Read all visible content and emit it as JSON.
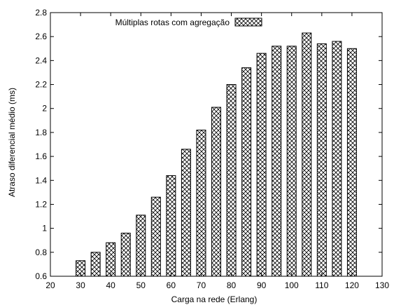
{
  "chart_data": {
    "type": "bar",
    "title": "",
    "xlabel": "Carga na rede (Erlang)",
    "ylabel": "Atraso diferencial médio (ms)",
    "xlim": [
      20,
      130
    ],
    "ylim": [
      0.6,
      2.8
    ],
    "xticks": [
      "20",
      "30",
      "40",
      "50",
      "60",
      "70",
      "80",
      "90",
      "100",
      "110",
      "120",
      "130"
    ],
    "yticks": [
      "0.6",
      "0.8",
      "1",
      "1.2",
      "1.4",
      "1.6",
      "1.8",
      "2",
      "2.2",
      "2.4",
      "2.6",
      "2.8"
    ],
    "legend_position": "top",
    "grid": false,
    "bar_pattern": "crosshatch",
    "series": [
      {
        "name": "Múltiplas rotas com agregação",
        "x": [
          30,
          35,
          40,
          45,
          50,
          55,
          60,
          65,
          70,
          75,
          80,
          85,
          90,
          95,
          100,
          105,
          110,
          115,
          120
        ],
        "values": [
          0.73,
          0.8,
          0.88,
          0.96,
          1.11,
          1.26,
          1.44,
          1.66,
          1.82,
          2.01,
          2.2,
          2.34,
          2.46,
          2.52,
          2.52,
          2.63,
          2.54,
          2.56,
          2.5
        ]
      }
    ]
  }
}
